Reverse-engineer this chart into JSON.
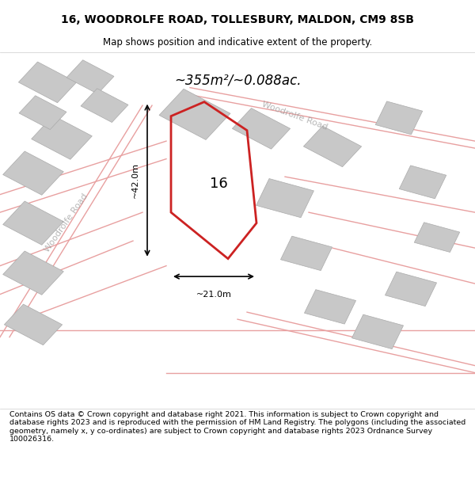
{
  "title_line1": "16, WOODROLFE ROAD, TOLLESBURY, MALDON, CM9 8SB",
  "title_line2": "Map shows position and indicative extent of the property.",
  "area_text": "~355m²/~0.088ac.",
  "label_16": "16",
  "dim_width": "~21.0m",
  "dim_height": "~42.0m",
  "road_label1": "Woodrolfe Road",
  "road_label2": "Woodrolfe Road",
  "footer_text": "Contains OS data © Crown copyright and database right 2021. This information is subject to Crown copyright and database rights 2023 and is reproduced with the permission of HM Land Registry. The polygons (including the associated geometry, namely x, y co-ordinates) are subject to Crown copyright and database rights 2023 Ordnance Survey 100026316.",
  "bg_color": "#f5f0f0",
  "map_bg": "#f0e8e8",
  "plot_color": "#cc2222",
  "plot_fill": "none",
  "building_color": "#cccccc",
  "building_fill": "#d8d8d8",
  "road_line_color": "#e8b0b0",
  "title_bg": "#ffffff",
  "footer_bg": "#ffffff"
}
